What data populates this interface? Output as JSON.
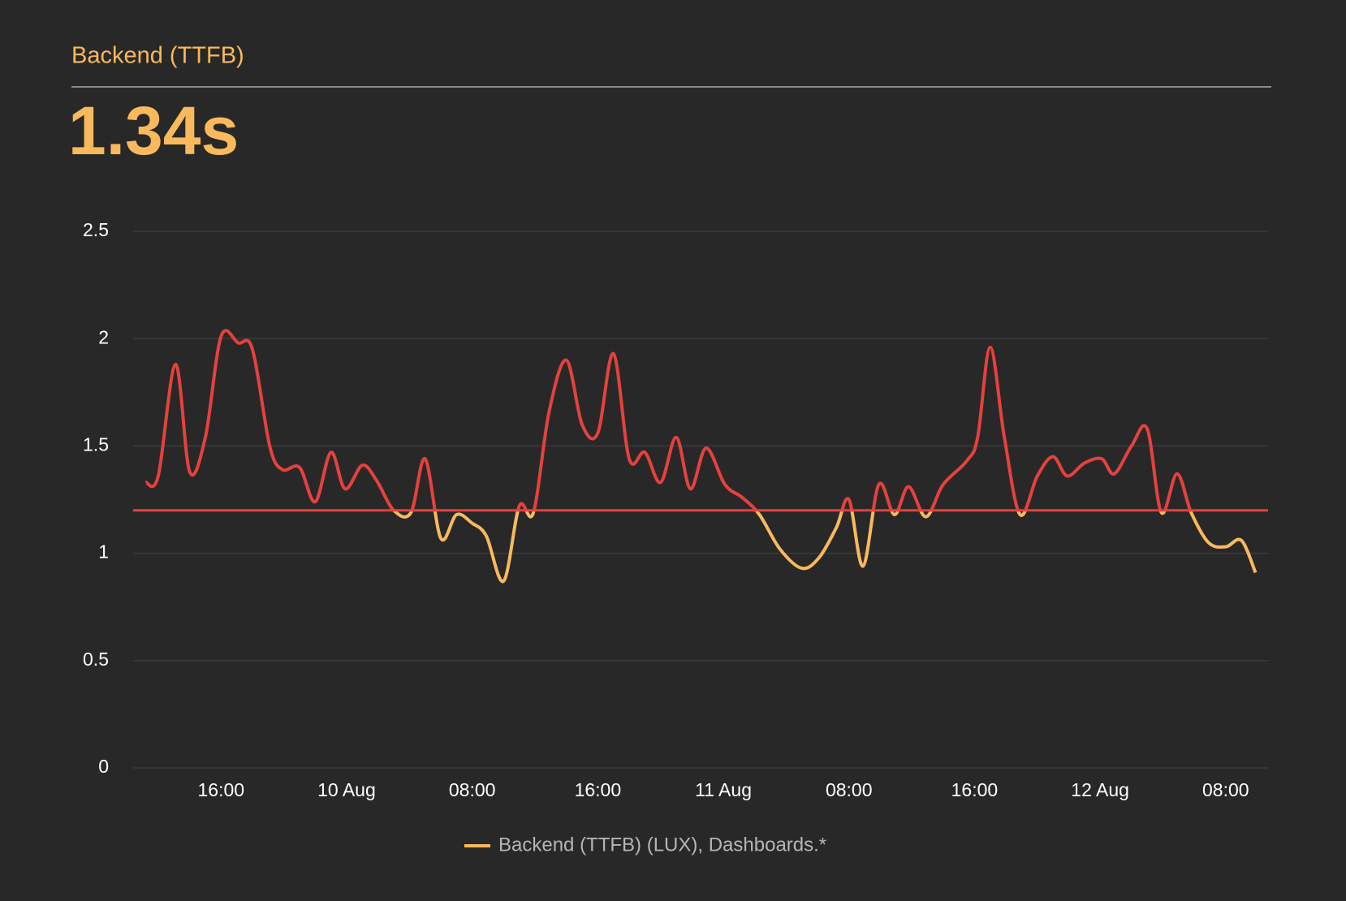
{
  "chart_data": {
    "type": "line",
    "title": "Backend (TTFB)",
    "headline": "1.34s",
    "x": [
      11.2,
      12.0,
      13.1,
      14.0,
      15.0,
      16.0,
      17.1,
      18.0,
      19.1,
      19.9,
      21.0,
      22.0,
      23.0,
      23.9,
      25.0,
      25.9,
      27.0,
      28.1,
      29.0,
      30.0,
      31.0,
      32.0,
      32.9,
      34.0,
      35.0,
      35.9,
      36.9,
      38.0,
      39.0,
      40.0,
      41.0,
      42.0,
      43.0,
      44.0,
      45.0,
      45.9,
      46.9,
      48.1,
      49.2,
      50.3,
      51.6,
      53.0,
      54.1,
      55.2,
      56.0,
      56.9,
      57.9,
      58.9,
      59.8,
      60.9,
      62.0,
      63.5,
      64.2,
      65.0,
      65.9,
      66.9,
      68.0,
      69.0,
      69.9,
      71.0,
      72.1,
      72.9,
      74.0,
      75.0,
      75.9,
      76.9,
      77.8,
      78.9,
      80.0,
      81.0,
      81.9
    ],
    "series": [
      {
        "name": "Backend (TTFB) (LUX), Dashboards.*",
        "color": "#f9b95c",
        "values": [
          1.33,
          1.36,
          1.88,
          1.38,
          1.54,
          2.01,
          1.98,
          1.95,
          1.5,
          1.39,
          1.4,
          1.24,
          1.47,
          1.3,
          1.41,
          1.34,
          1.2,
          1.19,
          1.44,
          1.07,
          1.18,
          1.14,
          1.08,
          0.87,
          1.22,
          1.19,
          1.66,
          1.9,
          1.6,
          1.56,
          1.93,
          1.44,
          1.47,
          1.33,
          1.54,
          1.3,
          1.49,
          1.32,
          1.26,
          1.18,
          1.02,
          0.93,
          0.98,
          1.12,
          1.25,
          0.94,
          1.32,
          1.18,
          1.31,
          1.17,
          1.32,
          1.43,
          1.54,
          1.96,
          1.54,
          1.18,
          1.36,
          1.45,
          1.36,
          1.42,
          1.44,
          1.37,
          1.5,
          1.58,
          1.19,
          1.37,
          1.19,
          1.05,
          1.03,
          1.06,
          0.91
        ]
      }
    ],
    "threshold": {
      "value": 1.2,
      "color": "#e5413e"
    },
    "xlim": [
      10.4,
      82.7
    ],
    "xticks": [
      {
        "value": 16,
        "label": "16:00"
      },
      {
        "value": 24,
        "label": "10 Aug"
      },
      {
        "value": 32,
        "label": "08:00"
      },
      {
        "value": 40,
        "label": "16:00"
      },
      {
        "value": 48,
        "label": "11 Aug"
      },
      {
        "value": 56,
        "label": "08:00"
      },
      {
        "value": 64,
        "label": "16:00"
      },
      {
        "value": 72,
        "label": "12 Aug"
      },
      {
        "value": 80,
        "label": "08:00"
      }
    ],
    "ylim": [
      0,
      2.5
    ],
    "yticks": [
      0,
      0.5,
      1,
      1.5,
      2,
      2.5
    ],
    "grid": true
  }
}
